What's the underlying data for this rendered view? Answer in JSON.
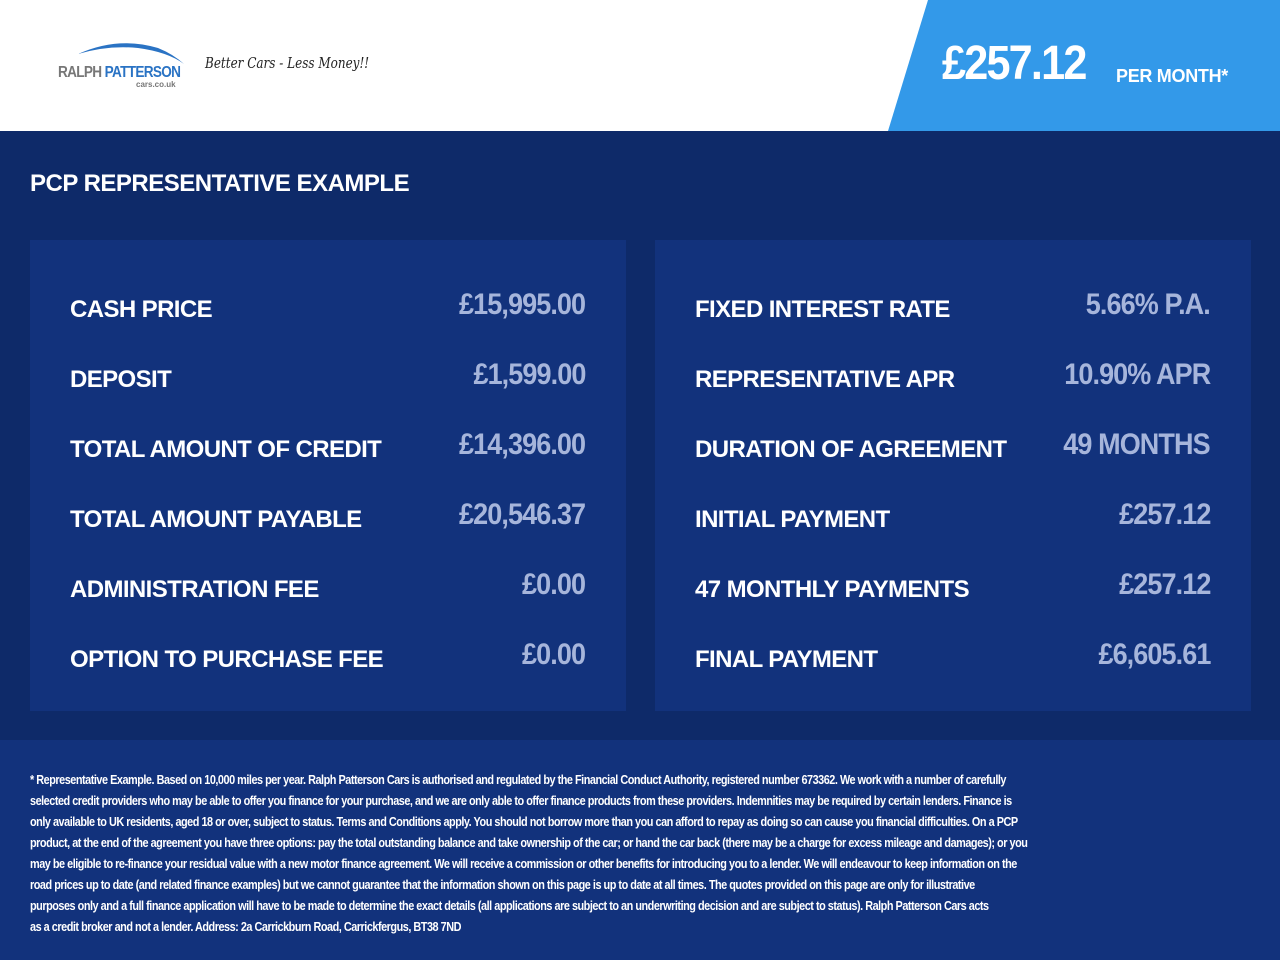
{
  "header": {
    "logo_text_1": "RALPH",
    "logo_text_2": "PATTERSON",
    "logo_sub": "cars.co.uk",
    "tagline": "Better Cars - Less Money!!",
    "price": "£257.12",
    "price_suffix": "PER MONTH*"
  },
  "colors": {
    "accent": "#3399e9",
    "background": "#0e2a69",
    "panel": "#12327c",
    "value": "#a6b5db"
  },
  "title": "PCP REPRESENTATIVE EXAMPLE",
  "left": [
    {
      "label": "CASH PRICE",
      "value": "£15,995.00"
    },
    {
      "label": "DEPOSIT",
      "value": "£1,599.00"
    },
    {
      "label": "TOTAL AMOUNT OF CREDIT",
      "value": "£14,396.00"
    },
    {
      "label": "TOTAL AMOUNT PAYABLE",
      "value": "£20,546.37"
    },
    {
      "label": "ADMINISTRATION FEE",
      "value": "£0.00"
    },
    {
      "label": "OPTION TO PURCHASE FEE",
      "value": "£0.00"
    }
  ],
  "right": [
    {
      "label": "FIXED INTEREST RATE",
      "value": "5.66% P.A."
    },
    {
      "label": "REPRESENTATIVE APR",
      "value": "10.90% APR"
    },
    {
      "label": "DURATION OF AGREEMENT",
      "value": "49 MONTHS"
    },
    {
      "label": "INITIAL PAYMENT",
      "value": "£257.12"
    },
    {
      "label": "47 MONTHLY PAYMENTS",
      "value": "£257.12"
    },
    {
      "label": "FINAL PAYMENT",
      "value": "£6,605.61"
    }
  ],
  "disclaimer": [
    "* Representative Example. Based on 10,000 miles per year. Ralph Patterson Cars is authorised and regulated by the Financial Conduct Authority, registered number 673362. We work with a number of carefully",
    "selected credit providers who may be able to offer you finance for your purchase, and we are only able to offer finance products from these providers. Indemnities may be required by certain lenders. Finance is",
    "only available to UK residents, aged 18 or over, subject to status. Terms and Conditions apply. You should not borrow more than you can afford to repay as doing so can cause you financial difficulties. On a PCP",
    "product, at the end of the agreement you have three options: pay the total outstanding balance and take ownership of the car; or hand the car back (there may be a charge for excess mileage and damages); or you",
    "may be eligible to re-finance your residual value with a new motor finance agreement. We will receive a commission or other benefits for introducing you to a lender. We will endeavour to keep information on the",
    "road prices up to date (and related finance examples) but we cannot guarantee that the information shown on this page is up to date at all times. The quotes provided on this page are only for illustrative",
    "purposes only and a full finance application will have to be made to determine the exact details (all applications are subject to an underwriting decision and are subject to status). Ralph Patterson Cars acts",
    "as a credit broker and not a lender. Address:  2a Carrickburn Road, Carrickfergus, BT38 7ND"
  ]
}
